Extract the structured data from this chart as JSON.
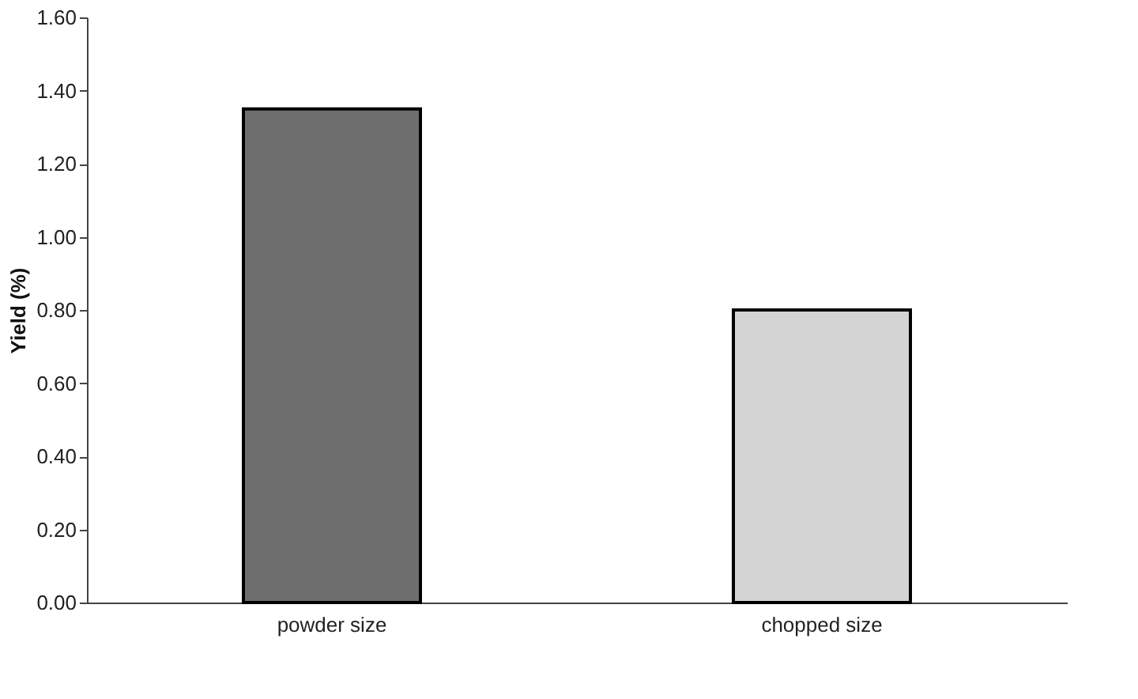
{
  "chart_data": {
    "type": "bar",
    "ylabel": "Yield (%)",
    "categories": [
      "powder size",
      "chopped size"
    ],
    "values": [
      1.35,
      0.8
    ],
    "colors": [
      "#6e6e6e",
      "#d4d4d4"
    ],
    "ylim": [
      0,
      1.6
    ],
    "yticks": [
      {
        "value": 0,
        "label": "0.00"
      },
      {
        "value": 0.2,
        "label": "0.20"
      },
      {
        "value": 0.4,
        "label": "0.40"
      },
      {
        "value": 0.6,
        "label": "0.60"
      },
      {
        "value": 0.8,
        "label": "0.80"
      },
      {
        "value": 1.0,
        "label": "1.00"
      },
      {
        "value": 1.2,
        "label": "1.20"
      },
      {
        "value": 1.4,
        "label": "1.40"
      },
      {
        "value": 1.6,
        "label": "1.60"
      }
    ],
    "grid": false,
    "legend": false
  }
}
